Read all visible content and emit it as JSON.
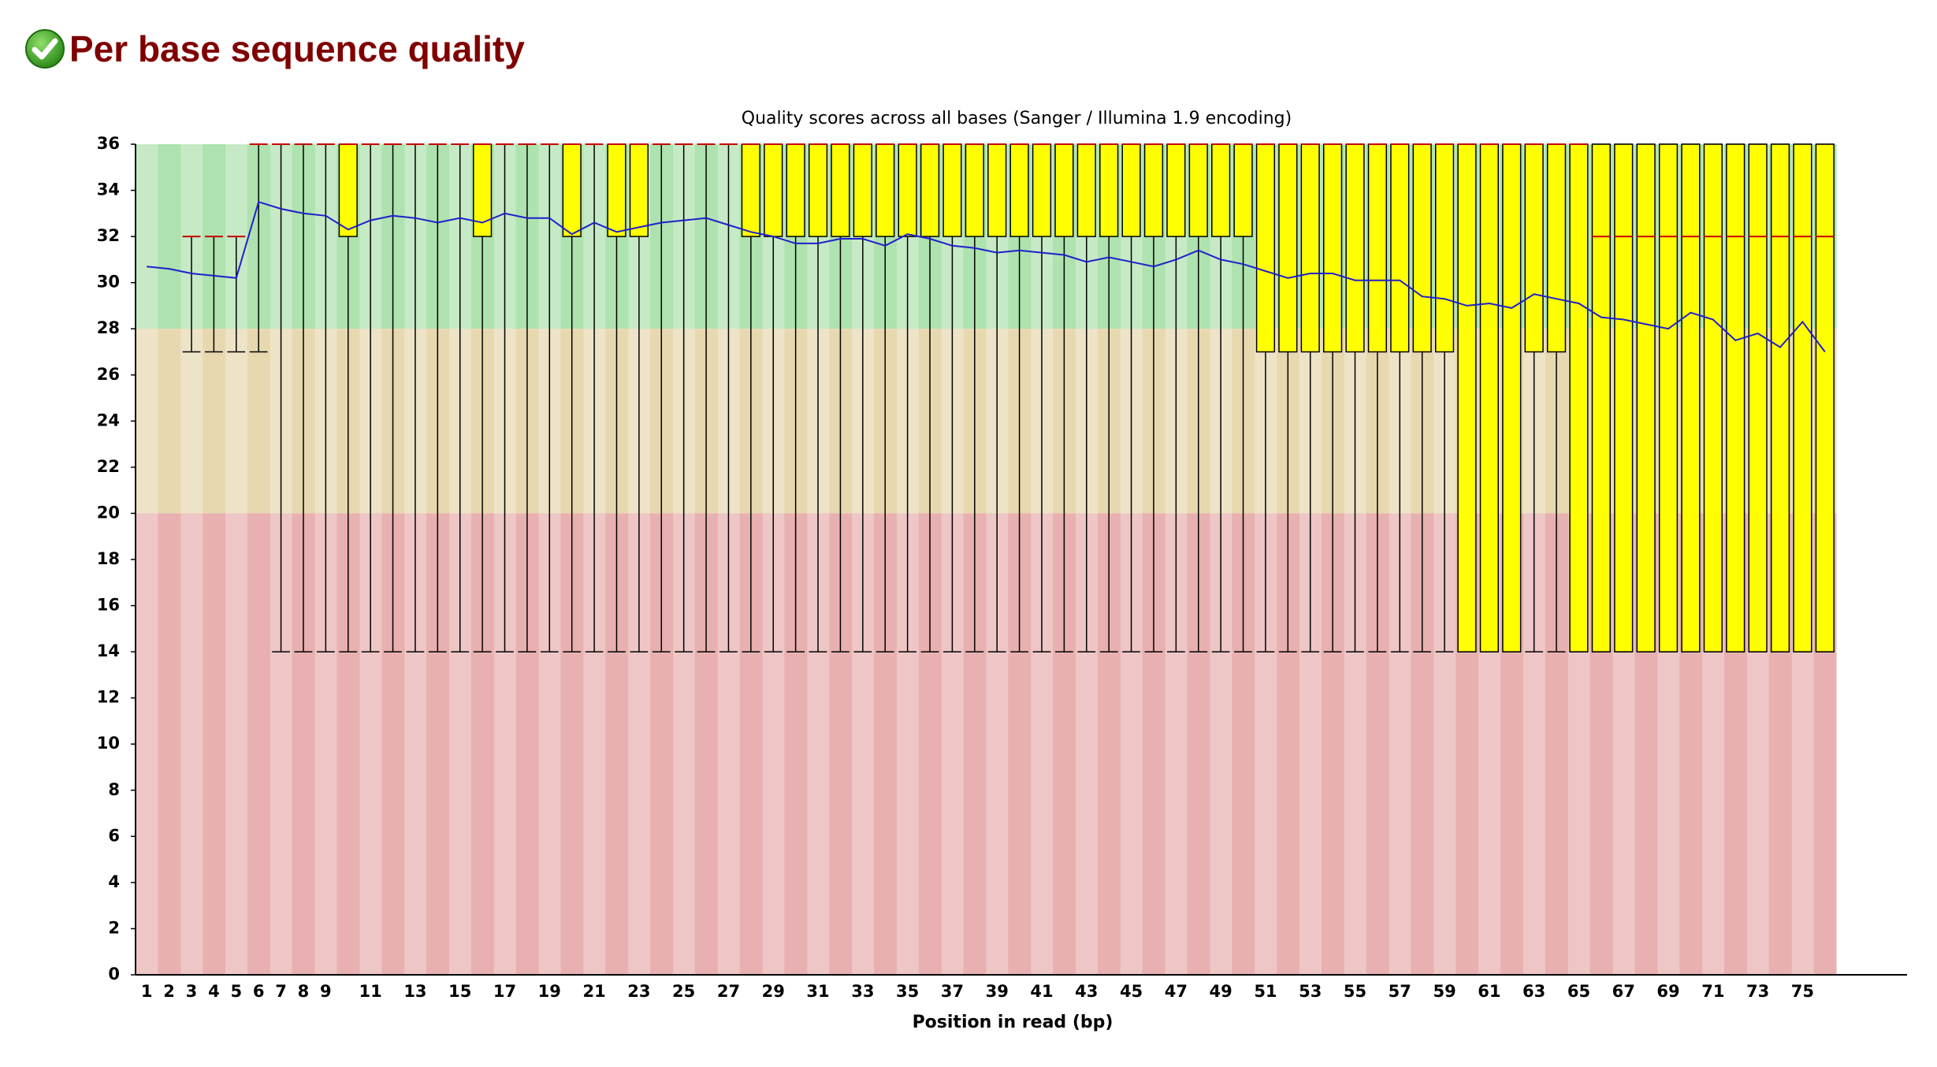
{
  "header": {
    "title": "Per base sequence quality"
  },
  "chart_data": {
    "type": "boxplot",
    "title": "Quality scores across all bases (Sanger / Illumina 1.9 encoding)",
    "x_label": "Position in read (bp)",
    "categories": [
      "1",
      "2",
      "3",
      "4",
      "5",
      "6",
      "7",
      "8",
      "9",
      null,
      "11",
      null,
      "13",
      null,
      "15",
      null,
      "17",
      null,
      "19",
      null,
      "21",
      null,
      "23",
      null,
      "25",
      null,
      "27",
      null,
      "29",
      null,
      "31",
      null,
      "33",
      null,
      "35",
      null,
      "37",
      null,
      "39",
      null,
      "41",
      null,
      "43",
      null,
      "45",
      null,
      "47",
      null,
      "49",
      null,
      "51",
      null,
      "53",
      null,
      "55",
      null,
      "57",
      null,
      "59",
      null,
      "61",
      null,
      "63",
      null,
      "65",
      null,
      "67",
      null,
      "69",
      null,
      "71",
      null,
      "73",
      null,
      "75",
      null
    ],
    "boxes": {
      "whislo": [
        null,
        null,
        27,
        27,
        27,
        27,
        14,
        14,
        14,
        14,
        14,
        14,
        14,
        14,
        14,
        14,
        14,
        14,
        14,
        14,
        14,
        14,
        14,
        14,
        14,
        14,
        14,
        14,
        14,
        14,
        14,
        14,
        14,
        14,
        14,
        14,
        14,
        14,
        14,
        14,
        14,
        14,
        14,
        14,
        14,
        14,
        14,
        14,
        14,
        14,
        14,
        14,
        14,
        14,
        14,
        14,
        14,
        14,
        14,
        14,
        14,
        14,
        14,
        14,
        14,
        14,
        14,
        14,
        14,
        14,
        14,
        14,
        14,
        14,
        14,
        14
      ],
      "q1": [
        null,
        null,
        32,
        32,
        32,
        36,
        36,
        36,
        36,
        32,
        36,
        36,
        36,
        36,
        36,
        32,
        36,
        36,
        36,
        32,
        36,
        32,
        32,
        36,
        36,
        36,
        36,
        32,
        32,
        32,
        32,
        32,
        32,
        32,
        32,
        32,
        32,
        32,
        32,
        32,
        32,
        32,
        32,
        32,
        32,
        32,
        32,
        32,
        32,
        32,
        27,
        27,
        27,
        27,
        27,
        27,
        27,
        27,
        27,
        14,
        14,
        14,
        27,
        27,
        14,
        14,
        14,
        14,
        14,
        14,
        14,
        14,
        14,
        14,
        14,
        14
      ],
      "med": [
        null,
        null,
        32,
        32,
        32,
        36,
        36,
        36,
        36,
        36,
        36,
        36,
        36,
        36,
        36,
        36,
        36,
        36,
        36,
        36,
        36,
        36,
        36,
        36,
        36,
        36,
        36,
        36,
        36,
        36,
        36,
        36,
        36,
        36,
        36,
        36,
        36,
        36,
        36,
        36,
        36,
        36,
        36,
        36,
        36,
        36,
        36,
        36,
        36,
        36,
        36,
        36,
        36,
        36,
        36,
        36,
        36,
        36,
        36,
        36,
        36,
        36,
        36,
        36,
        36,
        32,
        32,
        32,
        32,
        32,
        32,
        32,
        32,
        32,
        32,
        32
      ],
      "q3": [
        null,
        null,
        32,
        32,
        32,
        36,
        36,
        36,
        36,
        36,
        36,
        36,
        36,
        36,
        36,
        36,
        36,
        36,
        36,
        36,
        36,
        36,
        36,
        36,
        36,
        36,
        36,
        36,
        36,
        36,
        36,
        36,
        36,
        36,
        36,
        36,
        36,
        36,
        36,
        36,
        36,
        36,
        36,
        36,
        36,
        36,
        36,
        36,
        36,
        36,
        36,
        36,
        36,
        36,
        36,
        36,
        36,
        36,
        36,
        36,
        36,
        36,
        36,
        36,
        36,
        36,
        36,
        36,
        36,
        36,
        36,
        36,
        36,
        36,
        36,
        36
      ],
      "whishi": [
        null,
        null,
        32,
        32,
        32,
        36,
        36,
        36,
        36,
        36,
        36,
        36,
        36,
        36,
        36,
        36,
        36,
        36,
        36,
        36,
        36,
        36,
        36,
        36,
        36,
        36,
        36,
        36,
        36,
        36,
        36,
        36,
        36,
        36,
        36,
        36,
        36,
        36,
        36,
        36,
        36,
        36,
        36,
        36,
        36,
        36,
        36,
        36,
        36,
        36,
        36,
        36,
        36,
        36,
        36,
        36,
        36,
        36,
        36,
        36,
        36,
        36,
        36,
        36,
        36,
        36,
        36,
        36,
        36,
        36,
        36,
        36,
        36,
        36,
        36,
        36
      ],
      "box_color": "#ffff00",
      "median_color": "#cc0000"
    },
    "mean": {
      "color": "#1f1fcc",
      "values": [
        30.7,
        30.6,
        30.4,
        30.3,
        30.2,
        33.5,
        33.2,
        33.0,
        32.9,
        32.3,
        32.7,
        32.9,
        32.8,
        32.6,
        32.8,
        32.6,
        33.0,
        32.8,
        32.8,
        32.1,
        32.6,
        32.2,
        32.4,
        32.6,
        32.7,
        32.8,
        32.5,
        32.2,
        32.0,
        31.7,
        31.7,
        31.9,
        31.9,
        31.6,
        32.1,
        31.9,
        31.6,
        31.5,
        31.3,
        31.4,
        31.3,
        31.2,
        30.9,
        31.1,
        30.9,
        30.7,
        31.0,
        31.4,
        31.0,
        30.8,
        30.5,
        30.2,
        30.4,
        30.4,
        30.1,
        30.1,
        30.1,
        29.4,
        29.3,
        29.0,
        29.1,
        28.9,
        29.5,
        29.3,
        29.1,
        28.5,
        28.4,
        28.2,
        28.0,
        28.7,
        28.4,
        27.5,
        27.8,
        27.2,
        28.3,
        27.0
      ]
    },
    "bands": [
      {
        "from": 28,
        "to": 36,
        "color": "#aee2ae"
      },
      {
        "from": 20,
        "to": 28,
        "color": "#e8d8b0"
      },
      {
        "from": 0,
        "to": 20,
        "color": "#e8b0b0"
      }
    ],
    "ylim": [
      0,
      36
    ],
    "yticks": [
      0,
      2,
      4,
      6,
      8,
      10,
      12,
      14,
      16,
      18,
      20,
      22,
      24,
      26,
      28,
      30,
      32,
      34,
      36
    ]
  }
}
